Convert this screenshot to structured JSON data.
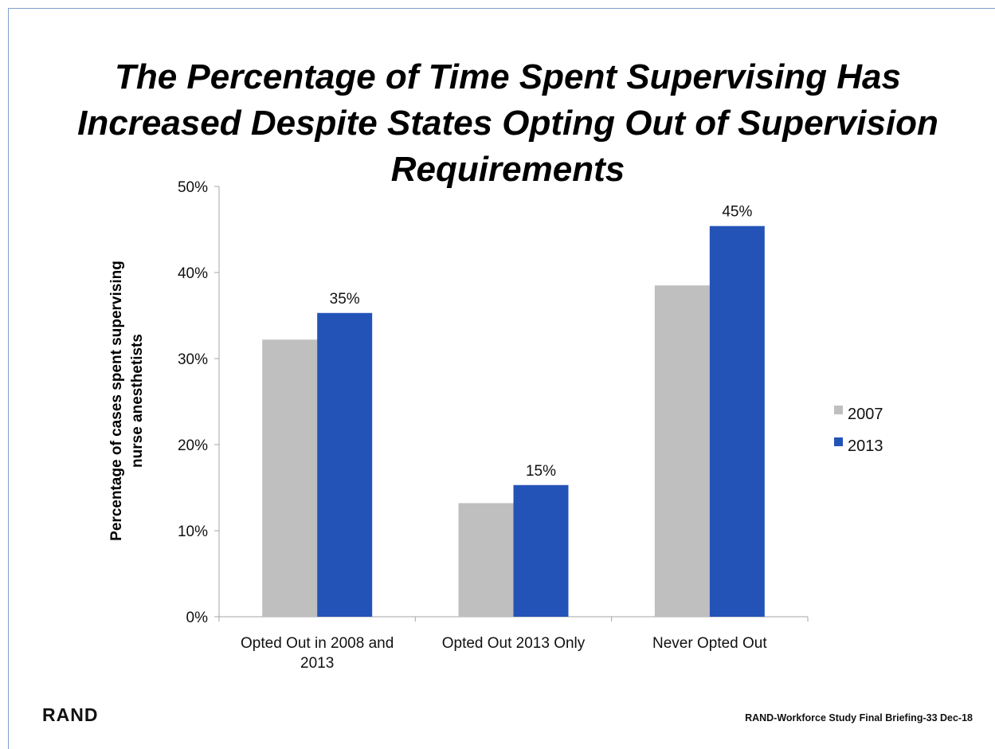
{
  "slide": {
    "title": "The Percentage of Time Spent Supervising Has\nIncreased Despite States Opting Out of Supervision\nRequirements",
    "logo": "RAND",
    "footer": "RAND-Workforce Study Final Briefing-33  Dec-18"
  },
  "colors": {
    "series_2007": "#bfbfbf",
    "series_2013": "#2453b8",
    "axis": "#a6a6a6"
  },
  "chart_data": {
    "type": "bar",
    "categories": [
      [
        "Opted Out in 2008 and",
        "2013"
      ],
      [
        "Opted Out 2013 Only"
      ],
      [
        "Never Opted Out"
      ]
    ],
    "series": [
      {
        "name": "2007",
        "values": [
          32.2,
          13.2,
          38.5
        ],
        "data_labels": [
          "",
          "",
          ""
        ]
      },
      {
        "name": "2013",
        "values": [
          35.3,
          15.3,
          45.4
        ],
        "data_labels": [
          "35%",
          "15%",
          "45%"
        ]
      }
    ],
    "ylabel": [
      "Percentage  of cases spent supervising",
      "nurse anesthetists"
    ],
    "ylim": [
      0,
      50
    ],
    "yticks": [
      "0%",
      "10%",
      "20%",
      "30%",
      "40%",
      "50%"
    ],
    "grid": false,
    "legend": "right"
  }
}
